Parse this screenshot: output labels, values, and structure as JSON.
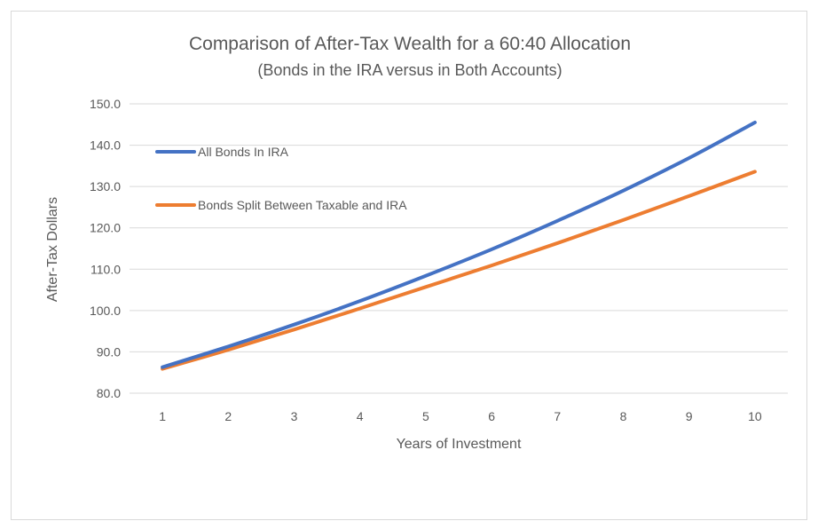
{
  "chart_data": {
    "type": "line",
    "title": "Comparison of After-Tax Wealth for a 60:40 Allocation",
    "subtitle": "(Bonds in the IRA versus in Both Accounts)",
    "xlabel": "Years of Investment",
    "ylabel": "After-Tax Dollars",
    "x": [
      1,
      2,
      3,
      4,
      5,
      6,
      7,
      8,
      9,
      10
    ],
    "x_tick_labels": [
      "1",
      "2",
      "3",
      "4",
      "5",
      "6",
      "7",
      "8",
      "9",
      "10"
    ],
    "y_tick_labels": [
      "80.0",
      "90.0",
      "100.0",
      "110.0",
      "120.0",
      "130.0",
      "140.0",
      "150.0"
    ],
    "ylim": [
      80,
      150
    ],
    "grid": "horizontal",
    "legend_position": "top-left",
    "series": [
      {
        "name": "All Bonds In IRA",
        "color": "#4472C4",
        "values": [
          86.3,
          91.3,
          96.6,
          102.3,
          108.4,
          114.8,
          121.7,
          129.0,
          136.9,
          145.5
        ]
      },
      {
        "name": "Bonds Split Between Taxable and IRA",
        "color": "#ED7D31",
        "values": [
          85.9,
          90.5,
          95.4,
          100.5,
          105.7,
          110.9,
          116.3,
          121.9,
          127.7,
          133.6
        ]
      }
    ]
  }
}
